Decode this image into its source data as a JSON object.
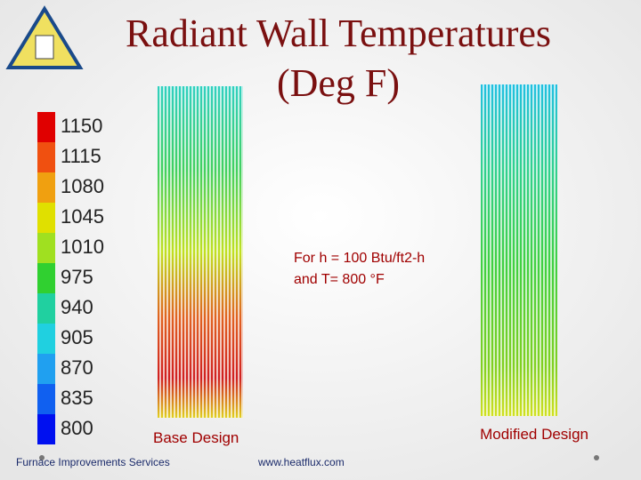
{
  "header": {
    "title_lines": [
      "Radiant Wall Temperatures",
      "(Deg F)"
    ]
  },
  "legend": {
    "labels": [
      "1150",
      "1115",
      "1080",
      "1045",
      "1010",
      "975",
      "940",
      "905",
      "870",
      "835",
      "800"
    ]
  },
  "annotation": {
    "lines": [
      "For h = 100 Btu/ft2-h",
      "and T= 800 °F"
    ]
  },
  "panels": [
    {
      "label": "Base Design"
    },
    {
      "label": "Modified Design"
    }
  ],
  "footer": {
    "left": "Furnace Improvements Services",
    "center": "www.heatflux.com"
  }
}
